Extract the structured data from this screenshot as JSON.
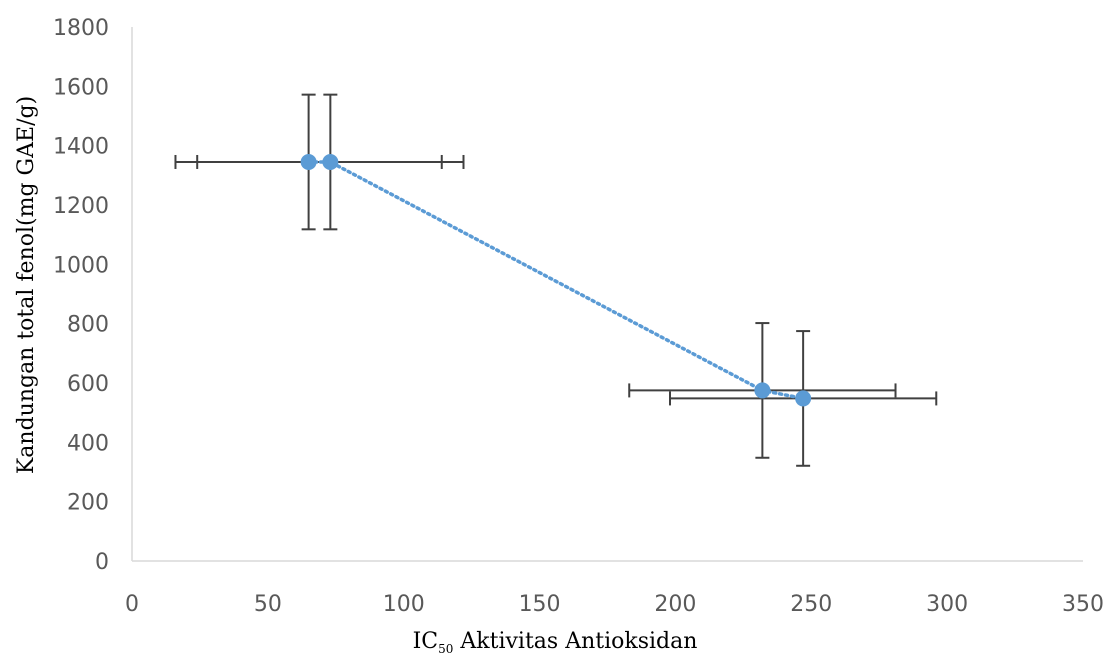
{
  "chart_data": {
    "type": "scatter",
    "title": "",
    "xlabel": "IC",
    "xlabel_subscript": "50",
    "xlabel_rest": " Aktivitas Antioksidan",
    "ylabel": "Kandungan total fenol(mg GAE/g)",
    "xlim": [
      0,
      350
    ],
    "ylim": [
      0,
      1800
    ],
    "x_ticks": [
      0,
      50,
      100,
      150,
      200,
      250,
      300,
      350
    ],
    "y_ticks": [
      0,
      200,
      400,
      600,
      800,
      1000,
      1200,
      1400,
      1600,
      1800
    ],
    "grid": false,
    "legend": "none",
    "series": [
      {
        "color": "#5b9bd5",
        "points": [
          {
            "x": 65,
            "y": 1345,
            "xerr": 49,
            "yerr": 227
          },
          {
            "x": 73,
            "y": 1345,
            "xerr": 49,
            "yerr": 227
          },
          {
            "x": 232,
            "y": 575,
            "xerr": 49,
            "yerr": 227
          },
          {
            "x": 247,
            "y": 548,
            "xerr": 49,
            "yerr": 227
          }
        ]
      }
    ],
    "trendline": {
      "style": "dotted",
      "color": "#5b9bd5"
    },
    "error_bar_color": "#404040",
    "axis_color": "#d9d9d9"
  }
}
